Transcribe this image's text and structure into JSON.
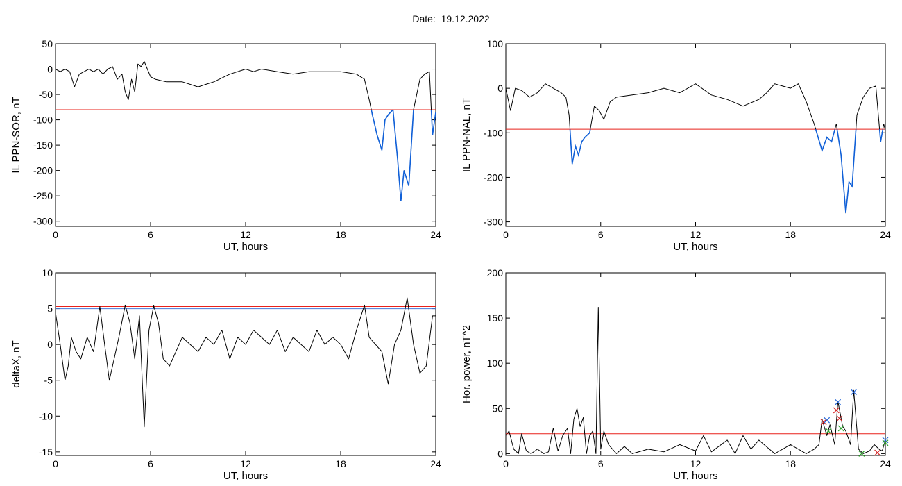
{
  "page": {
    "title": "Date:  19.12.2022"
  },
  "colors": {
    "background": "#ffffff",
    "trace": "#000000",
    "threshold": "#e8201a",
    "highlight": "#1060d8",
    "threshold_alt": "#4a7ad8",
    "marker_red": "#d22020",
    "marker_blue": "#2a6ad8",
    "marker_green": "#2aa02a"
  },
  "chart_data": [
    {
      "type": "line",
      "xlabel": "UT, hours",
      "ylabel": "IL PPN-SOR, nT",
      "xlim": [
        0,
        24
      ],
      "ylim": [
        -310,
        50
      ],
      "xticks": [
        0,
        6,
        12,
        18,
        24
      ],
      "yticks": [
        50,
        0,
        -50,
        -100,
        -150,
        -200,
        -250,
        -300
      ],
      "threshold": -80,
      "series": [
        {
          "x": [
            0,
            0.3,
            0.6,
            0.9,
            1.2,
            1.5,
            1.8,
            2.1,
            2.4,
            2.7,
            3.0,
            3.3,
            3.6,
            3.9,
            4.2,
            4.4,
            4.6,
            4.8,
            5.0,
            5.2,
            5.4,
            5.6,
            5.8,
            6.0,
            6.3,
            7.0,
            8.0,
            9.0,
            9.5,
            10.0,
            11.0,
            12.0,
            12.5,
            13.0,
            14.0,
            15.0,
            16.0,
            17.0,
            18.0,
            19.0,
            19.5,
            19.8,
            20.0,
            20.3,
            20.6,
            20.8,
            21.0,
            21.3,
            21.6,
            21.8,
            22.0,
            22.3,
            22.6,
            23.0,
            23.3,
            23.6,
            23.8,
            24.0
          ],
          "y": [
            0,
            -5,
            0,
            -5,
            -35,
            -10,
            -5,
            0,
            -5,
            0,
            -10,
            0,
            5,
            -20,
            -10,
            -45,
            -60,
            -20,
            -45,
            10,
            5,
            15,
            0,
            -15,
            -20,
            -25,
            -25,
            -35,
            -30,
            -25,
            -10,
            0,
            -5,
            0,
            -5,
            -10,
            -5,
            -5,
            -5,
            -10,
            -20,
            -60,
            -90,
            -130,
            -160,
            -100,
            -90,
            -80,
            -180,
            -260,
            -200,
            -230,
            -80,
            -20,
            -10,
            -5,
            -130,
            -85
          ]
        }
      ]
    },
    {
      "type": "line",
      "xlabel": "UT, hours",
      "ylabel": "IL PPN-NAL, nT",
      "xlim": [
        0,
        24
      ],
      "ylim": [
        -310,
        100
      ],
      "xticks": [
        0,
        6,
        12,
        18,
        24
      ],
      "yticks": [
        100,
        0,
        -100,
        -200,
        -300
      ],
      "threshold": -92,
      "series": [
        {
          "x": [
            0,
            0.3,
            0.6,
            1.0,
            1.5,
            2.0,
            2.5,
            3.0,
            3.5,
            3.8,
            4.0,
            4.2,
            4.4,
            4.6,
            4.8,
            5.0,
            5.3,
            5.6,
            5.9,
            6.2,
            6.6,
            7.0,
            8.0,
            9.0,
            10.0,
            11.0,
            12.0,
            13.0,
            14.0,
            15.0,
            16.0,
            16.5,
            17.0,
            17.5,
            18.0,
            18.5,
            19.0,
            19.5,
            20.0,
            20.3,
            20.6,
            20.9,
            21.2,
            21.5,
            21.7,
            21.9,
            22.2,
            22.6,
            23.0,
            23.4,
            23.7,
            23.9,
            24.0
          ],
          "y": [
            0,
            -50,
            0,
            -5,
            -20,
            -10,
            10,
            0,
            -10,
            -20,
            -60,
            -170,
            -130,
            -150,
            -120,
            -110,
            -100,
            -40,
            -50,
            -70,
            -30,
            -20,
            -15,
            -10,
            0,
            -10,
            10,
            -15,
            -25,
            -40,
            -25,
            -10,
            10,
            5,
            0,
            10,
            -30,
            -80,
            -140,
            -110,
            -120,
            -80,
            -150,
            -280,
            -210,
            -220,
            -60,
            -20,
            0,
            5,
            -120,
            -80,
            -95
          ]
        }
      ]
    },
    {
      "type": "line",
      "xlabel": "UT, hours",
      "ylabel": "deltaX, nT",
      "xlim": [
        0,
        24
      ],
      "ylim": [
        -15.5,
        10
      ],
      "xticks": [
        0,
        6,
        12,
        18,
        24
      ],
      "yticks": [
        10,
        5,
        0,
        -5,
        -10,
        -15
      ],
      "thresholds": [
        5.3,
        5.0
      ],
      "series": [
        {
          "x": [
            0,
            0.3,
            0.6,
            0.8,
            1.0,
            1.3,
            1.6,
            2.0,
            2.4,
            2.8,
            3.1,
            3.4,
            3.7,
            4.0,
            4.4,
            4.7,
            5.0,
            5.3,
            5.6,
            5.9,
            6.2,
            6.5,
            6.8,
            7.2,
            7.6,
            8.0,
            8.5,
            9.0,
            9.5,
            10.0,
            10.5,
            11.0,
            11.5,
            12.0,
            12.5,
            13.0,
            13.5,
            14.0,
            14.5,
            15.0,
            15.5,
            16.0,
            16.5,
            17.0,
            17.5,
            18.0,
            18.5,
            19.0,
            19.5,
            19.8,
            20.2,
            20.6,
            21.0,
            21.4,
            21.8,
            22.2,
            22.6,
            23.0,
            23.4,
            23.8,
            24.0
          ],
          "y": [
            4.5,
            0,
            -5,
            -3,
            1,
            -1,
            -2,
            1,
            -1,
            5.3,
            0,
            -5,
            -2,
            1,
            5.5,
            3,
            -2,
            4,
            -11.5,
            2,
            5.4,
            3,
            -2,
            -3,
            -1,
            1,
            0,
            -1,
            1,
            0,
            2,
            -2,
            1,
            0,
            2,
            1,
            0,
            2,
            -1,
            1,
            0,
            -1,
            2,
            0,
            1,
            0,
            -2,
            2,
            5.5,
            1,
            0,
            -1,
            -5.5,
            0,
            2,
            6.5,
            0,
            -4,
            -3,
            4,
            4
          ]
        }
      ]
    },
    {
      "type": "line",
      "xlabel": "UT, hours",
      "ylabel": "Hor. power, nT^2",
      "xlim": [
        0,
        24
      ],
      "ylim": [
        -2,
        200
      ],
      "xticks": [
        0,
        6,
        12,
        18,
        24
      ],
      "yticks": [
        200,
        150,
        100,
        50,
        0
      ],
      "threshold": 22,
      "series": [
        {
          "x": [
            0,
            0.2,
            0.5,
            0.8,
            1.0,
            1.3,
            1.6,
            2.0,
            2.4,
            2.7,
            3.0,
            3.3,
            3.6,
            3.9,
            4.1,
            4.3,
            4.5,
            4.7,
            4.9,
            5.1,
            5.3,
            5.5,
            5.7,
            5.85,
            6.0,
            6.2,
            6.5,
            7.0,
            7.5,
            8.0,
            9.0,
            10.0,
            11.0,
            12.0,
            12.5,
            13.0,
            14.0,
            14.5,
            15.0,
            15.5,
            16.0,
            17.0,
            18.0,
            19.0,
            19.5,
            19.8,
            20.0,
            20.3,
            20.5,
            20.8,
            21.0,
            21.3,
            21.5,
            21.8,
            22.0,
            22.3,
            22.6,
            23.0,
            23.3,
            23.6,
            23.8,
            24.0
          ],
          "y": [
            20,
            25,
            5,
            0,
            22,
            3,
            0,
            5,
            0,
            2,
            28,
            3,
            20,
            28,
            0,
            38,
            50,
            30,
            40,
            0,
            20,
            25,
            0,
            162,
            5,
            25,
            10,
            0,
            8,
            0,
            5,
            2,
            10,
            3,
            20,
            2,
            15,
            0,
            20,
            5,
            15,
            0,
            10,
            0,
            5,
            10,
            38,
            20,
            32,
            10,
            58,
            30,
            25,
            10,
            70,
            5,
            0,
            3,
            10,
            5,
            3,
            15
          ]
        }
      ],
      "markers": [
        {
          "x": 20.1,
          "y": 35,
          "symbol": "x",
          "color": "red"
        },
        {
          "x": 20.3,
          "y": 37,
          "symbol": "x",
          "color": "blue"
        },
        {
          "x": 20.4,
          "y": 25,
          "symbol": "x",
          "color": "green"
        },
        {
          "x": 20.9,
          "y": 48,
          "symbol": "x",
          "color": "red"
        },
        {
          "x": 21.0,
          "y": 57,
          "symbol": "x",
          "color": "blue"
        },
        {
          "x": 21.1,
          "y": 39,
          "symbol": "x",
          "color": "red"
        },
        {
          "x": 21.2,
          "y": 28,
          "symbol": "x",
          "color": "green"
        },
        {
          "x": 22.0,
          "y": 68,
          "symbol": "x",
          "color": "blue"
        },
        {
          "x": 22.5,
          "y": 0,
          "symbol": "x",
          "color": "green"
        },
        {
          "x": 23.5,
          "y": 1,
          "symbol": "x",
          "color": "red"
        },
        {
          "x": 24.0,
          "y": 15,
          "symbol": "x",
          "color": "blue"
        },
        {
          "x": 24.0,
          "y": 12,
          "symbol": "x",
          "color": "green"
        }
      ]
    }
  ]
}
